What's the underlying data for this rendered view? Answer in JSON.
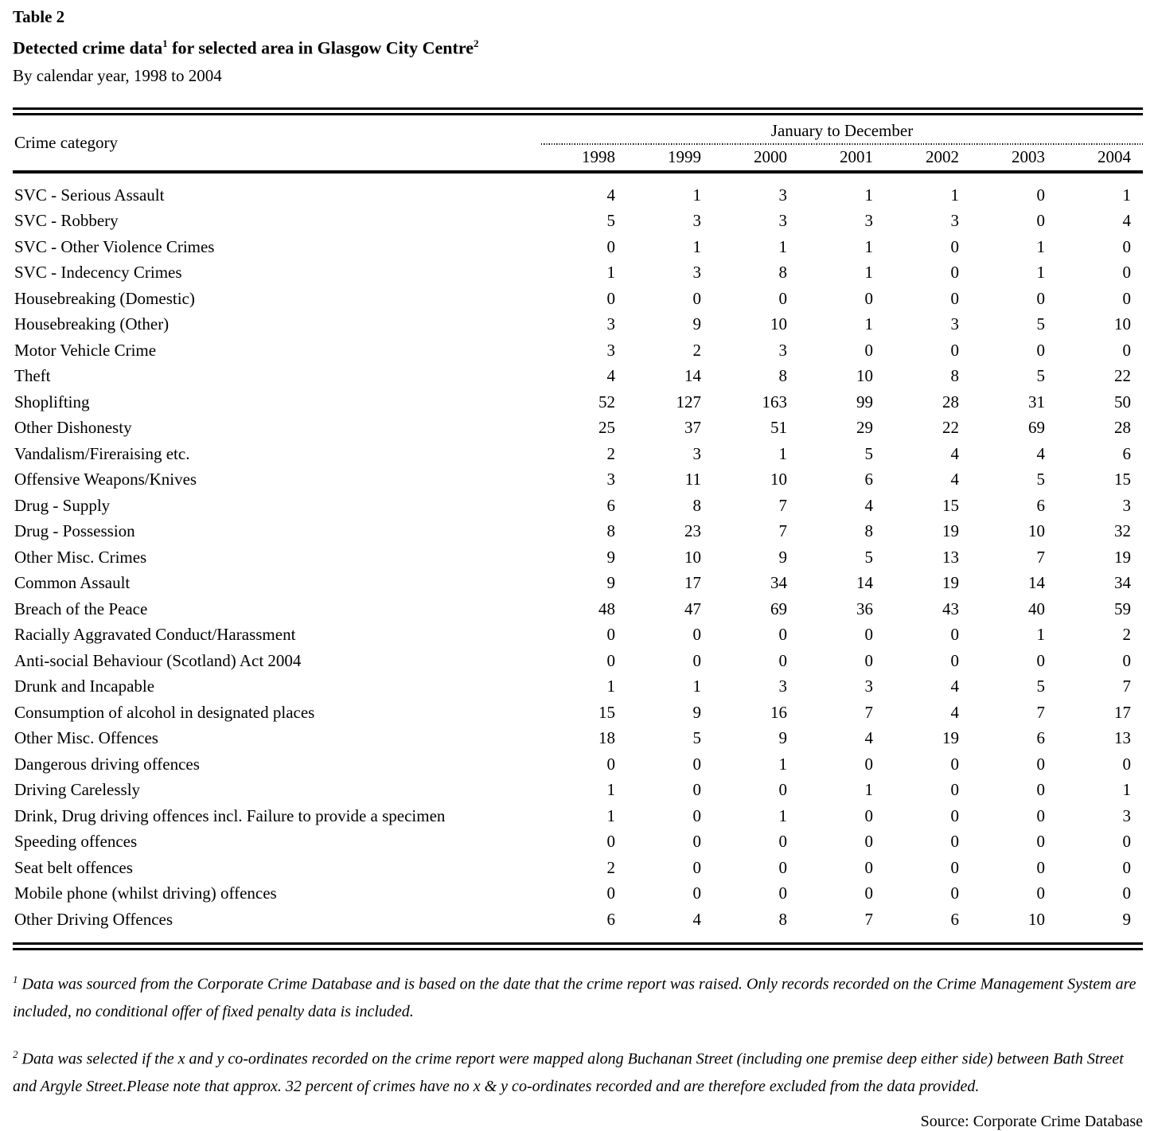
{
  "title": "Table 2",
  "subtitle": {
    "part1": "Detected crime data",
    "sup1": "1",
    "part2": " for selected area in Glasgow City Centre",
    "sup2": "2"
  },
  "period": "By calendar year, 1998 to 2004",
  "table": {
    "category_header": "Crime category",
    "span_header": "January to December",
    "years": [
      "1998",
      "1999",
      "2000",
      "2001",
      "2002",
      "2003",
      "2004"
    ],
    "rows": [
      {
        "category": "SVC - Serious Assault",
        "values": [
          4,
          1,
          3,
          1,
          1,
          0,
          1
        ]
      },
      {
        "category": "SVC - Robbery",
        "values": [
          5,
          3,
          3,
          3,
          3,
          0,
          4
        ]
      },
      {
        "category": "SVC - Other Violence Crimes",
        "values": [
          0,
          1,
          1,
          1,
          0,
          1,
          0
        ]
      },
      {
        "category": "SVC - Indecency Crimes",
        "values": [
          1,
          3,
          8,
          1,
          0,
          1,
          0
        ]
      },
      {
        "category": "Housebreaking (Domestic)",
        "values": [
          0,
          0,
          0,
          0,
          0,
          0,
          0
        ]
      },
      {
        "category": "Housebreaking (Other)",
        "values": [
          3,
          9,
          10,
          1,
          3,
          5,
          10
        ]
      },
      {
        "category": "Motor Vehicle Crime",
        "values": [
          3,
          2,
          3,
          0,
          0,
          0,
          0
        ]
      },
      {
        "category": "Theft",
        "values": [
          4,
          14,
          8,
          10,
          8,
          5,
          22
        ]
      },
      {
        "category": "Shoplifting",
        "values": [
          52,
          127,
          163,
          99,
          28,
          31,
          50
        ]
      },
      {
        "category": "Other Dishonesty",
        "values": [
          25,
          37,
          51,
          29,
          22,
          69,
          28
        ]
      },
      {
        "category": "Vandalism/Fireraising etc.",
        "values": [
          2,
          3,
          1,
          5,
          4,
          4,
          6
        ]
      },
      {
        "category": "Offensive Weapons/Knives",
        "values": [
          3,
          11,
          10,
          6,
          4,
          5,
          15
        ]
      },
      {
        "category": "Drug - Supply",
        "values": [
          6,
          8,
          7,
          4,
          15,
          6,
          3
        ]
      },
      {
        "category": "Drug - Possession",
        "values": [
          8,
          23,
          7,
          8,
          19,
          10,
          32
        ]
      },
      {
        "category": "Other Misc. Crimes",
        "values": [
          9,
          10,
          9,
          5,
          13,
          7,
          19
        ]
      },
      {
        "category": "Common Assault",
        "values": [
          9,
          17,
          34,
          14,
          19,
          14,
          34
        ]
      },
      {
        "category": "Breach of the Peace",
        "values": [
          48,
          47,
          69,
          36,
          43,
          40,
          59
        ]
      },
      {
        "category": "Racially Aggravated Conduct/Harassment",
        "values": [
          0,
          0,
          0,
          0,
          0,
          1,
          2
        ]
      },
      {
        "category": "Anti-social Behaviour (Scotland) Act 2004",
        "values": [
          0,
          0,
          0,
          0,
          0,
          0,
          0
        ]
      },
      {
        "category": "Drunk and Incapable",
        "values": [
          1,
          1,
          3,
          3,
          4,
          5,
          7
        ]
      },
      {
        "category": "Consumption of alcohol in designated places",
        "values": [
          15,
          9,
          16,
          7,
          4,
          7,
          17
        ]
      },
      {
        "category": "Other Misc. Offences",
        "values": [
          18,
          5,
          9,
          4,
          19,
          6,
          13
        ]
      },
      {
        "category": "Dangerous driving offences",
        "values": [
          0,
          0,
          1,
          0,
          0,
          0,
          0
        ]
      },
      {
        "category": "Driving Carelessly",
        "values": [
          1,
          0,
          0,
          1,
          0,
          0,
          1
        ]
      },
      {
        "category": "Drink, Drug driving offences incl. Failure to provide a specimen",
        "values": [
          1,
          0,
          1,
          0,
          0,
          0,
          3
        ]
      },
      {
        "category": "Speeding offences",
        "values": [
          0,
          0,
          0,
          0,
          0,
          0,
          0
        ]
      },
      {
        "category": "Seat belt offences",
        "values": [
          2,
          0,
          0,
          0,
          0,
          0,
          0
        ]
      },
      {
        "category": "Mobile phone (whilst driving) offences",
        "values": [
          0,
          0,
          0,
          0,
          0,
          0,
          0
        ]
      },
      {
        "category": "Other Driving Offences",
        "values": [
          6,
          4,
          8,
          7,
          6,
          10,
          9
        ]
      }
    ]
  },
  "footnotes": [
    {
      "marker": "1",
      "text": "Data was sourced from the Corporate Crime Database and is based on the date that the crime report was raised. Only records recorded on the Crime Management System are included, no conditional offer of fixed penalty data is included."
    },
    {
      "marker": "2",
      "text": "Data was selected if the x and y co-ordinates recorded on the crime report were mapped along Buchanan Street (including one premise deep either side) between Bath Street and Argyle Street.Please note that approx. 32 percent of crimes have no x & y co-ordinates recorded and are therefore excluded from the data provided."
    }
  ],
  "source": "Source: Corporate Crime Database"
}
